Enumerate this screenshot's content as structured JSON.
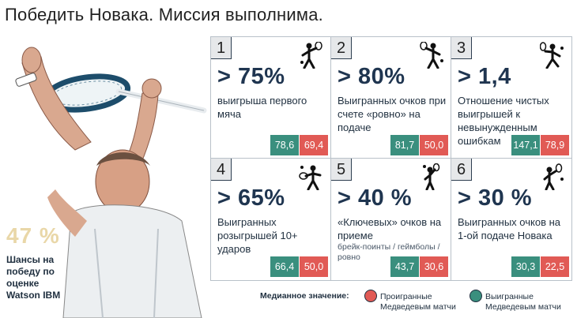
{
  "title": "Победить Новака. Миссия выполнима.",
  "chance": {
    "value": "47 %",
    "text": "Шансы на победу по оценке Watson IBM"
  },
  "cells": [
    {
      "num": "1",
      "big": "> 75%",
      "desc": "выигрыша первого мяча",
      "note": "",
      "green": "78,6",
      "red": "69,4",
      "icon": "tennis-player-icon"
    },
    {
      "num": "2",
      "big": "> 80%",
      "desc": "Выигранных очков при счете «ровно» на подаче",
      "note": "",
      "green": "81,7",
      "red": "50,0",
      "icon": "tennis-player-icon"
    },
    {
      "num": "3",
      "big": "> 1,4",
      "desc": "Отношение чистых выигрышей к невынужденным ошибкам",
      "note": "",
      "green": "147,1",
      "red": "78,9",
      "icon": "tennis-player-icon"
    },
    {
      "num": "4",
      "big": "> 65%",
      "desc": "Выигранных розыгрышей 10+ ударов",
      "note": "",
      "green": "66,4",
      "red": "50,0",
      "icon": "tennis-player-icon"
    },
    {
      "num": "5",
      "big": "> 40 %",
      "desc": "«Ключевых» очков на приеме",
      "note": "брейк-поинты / геймболы / ровно",
      "green": "43,7",
      "red": "30,6",
      "icon": "tennis-player-icon"
    },
    {
      "num": "6",
      "big": "> 30 %",
      "desc": "Выигранных очков на 1-ой подаче Новака",
      "note": "",
      "green": "30,3",
      "red": "22,5",
      "icon": "tennis-player-icon"
    }
  ],
  "legend": {
    "label": "Медианное значение:",
    "lost": "Проигранные Медведевым матчи",
    "won": "Выигранные Медведевым матчи"
  },
  "colors": {
    "green": "#3a8f7e",
    "red": "#e15a55",
    "gold": "#e9d7a8",
    "navy": "#1f3550"
  }
}
